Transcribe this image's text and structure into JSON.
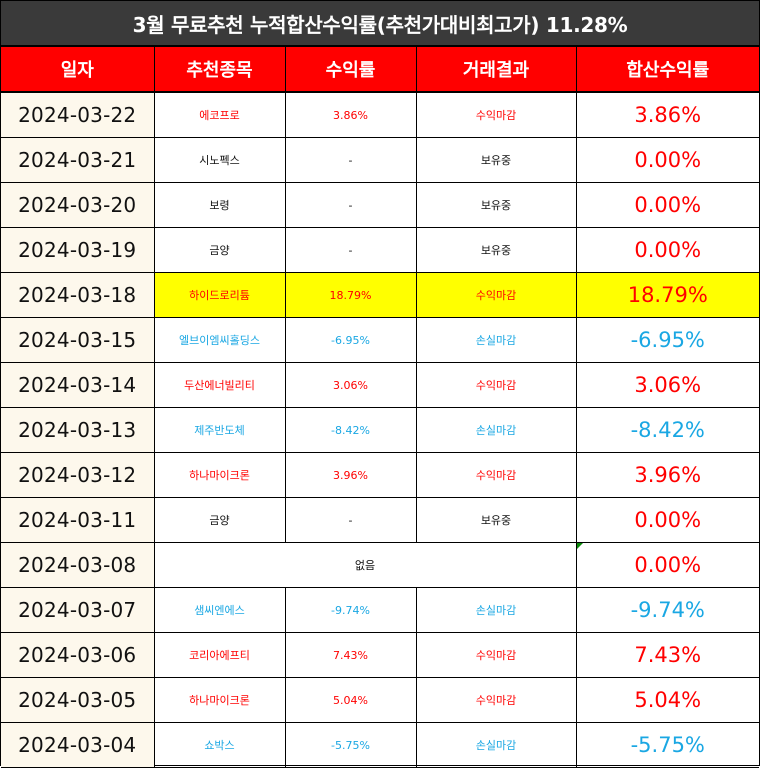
{
  "title": "3월 무료추천 누적합산수익률(추천가대비최고가) 11.28%",
  "columns": [
    "일자",
    "추천종목",
    "수익률",
    "거래결과",
    "합산수익률"
  ],
  "colors": {
    "header_bg": "#ff0000",
    "title_bg": "#3a3a3a",
    "gain": "#ff0000",
    "loss": "#1aa7e3",
    "hold": "#111111",
    "highlight": "#ffff00",
    "date_bg": "#fdf8ec"
  },
  "rows": [
    {
      "date": "2024-03-22",
      "stock": "에코프로",
      "return": "3.86%",
      "result": "수익마감",
      "total": "3.86%",
      "tone": "red",
      "total_tone": "red",
      "highlight": false,
      "merged": false
    },
    {
      "date": "2024-03-21",
      "stock": "시노펙스",
      "return": "-",
      "result": "보유중",
      "total": "0.00%",
      "tone": "black",
      "total_tone": "red",
      "highlight": false,
      "merged": false
    },
    {
      "date": "2024-03-20",
      "stock": "보령",
      "return": "-",
      "result": "보유중",
      "total": "0.00%",
      "tone": "black",
      "total_tone": "red",
      "highlight": false,
      "merged": false
    },
    {
      "date": "2024-03-19",
      "stock": "금양",
      "return": "-",
      "result": "보유중",
      "total": "0.00%",
      "tone": "black",
      "total_tone": "red",
      "highlight": false,
      "merged": false
    },
    {
      "date": "2024-03-18",
      "stock": "하이드로리튬",
      "return": "18.79%",
      "result": "수익마감",
      "total": "18.79%",
      "tone": "red",
      "total_tone": "red",
      "highlight": true,
      "merged": false
    },
    {
      "date": "2024-03-15",
      "stock": "엘브이엠씨홀딩스",
      "return": "-6.95%",
      "result": "손실마감",
      "total": "-6.95%",
      "tone": "blue",
      "total_tone": "blue",
      "highlight": false,
      "merged": false
    },
    {
      "date": "2024-03-14",
      "stock": "두산에너빌리티",
      "return": "3.06%",
      "result": "수익마감",
      "total": "3.06%",
      "tone": "red",
      "total_tone": "red",
      "highlight": false,
      "merged": false
    },
    {
      "date": "2024-03-13",
      "stock": "제주반도체",
      "return": "-8.42%",
      "result": "손실마감",
      "total": "-8.42%",
      "tone": "blue",
      "total_tone": "blue",
      "highlight": false,
      "merged": false
    },
    {
      "date": "2024-03-12",
      "stock": "하나마이크론",
      "return": "3.96%",
      "result": "수익마감",
      "total": "3.96%",
      "tone": "red",
      "total_tone": "red",
      "highlight": false,
      "merged": false
    },
    {
      "date": "2024-03-11",
      "stock": "금양",
      "return": "-",
      "result": "보유중",
      "total": "0.00%",
      "tone": "black",
      "total_tone": "red",
      "highlight": false,
      "merged": false
    },
    {
      "date": "2024-03-08",
      "stock": "없음",
      "return": "",
      "result": "",
      "total": "0.00%",
      "tone": "black",
      "total_tone": "red",
      "highlight": false,
      "merged": true
    },
    {
      "date": "2024-03-07",
      "stock": "샘씨엔에스",
      "return": "-9.74%",
      "result": "손실마감",
      "total": "-9.74%",
      "tone": "blue",
      "total_tone": "blue",
      "highlight": false,
      "merged": false
    },
    {
      "date": "2024-03-06",
      "stock": "코리아에프티",
      "return": "7.43%",
      "result": "수익마감",
      "total": "7.43%",
      "tone": "red",
      "total_tone": "red",
      "highlight": false,
      "merged": false
    },
    {
      "date": "2024-03-05",
      "stock": "하나마이크론",
      "return": "5.04%",
      "result": "수익마감",
      "total": "5.04%",
      "tone": "red",
      "total_tone": "red",
      "highlight": false,
      "merged": false
    },
    {
      "date": "2024-03-04",
      "stock": "쇼박스",
      "return": "-5.75%",
      "result": "손실마감",
      "total": "-5.75%",
      "tone": "blue",
      "total_tone": "blue",
      "highlight": false,
      "merged": false
    }
  ]
}
